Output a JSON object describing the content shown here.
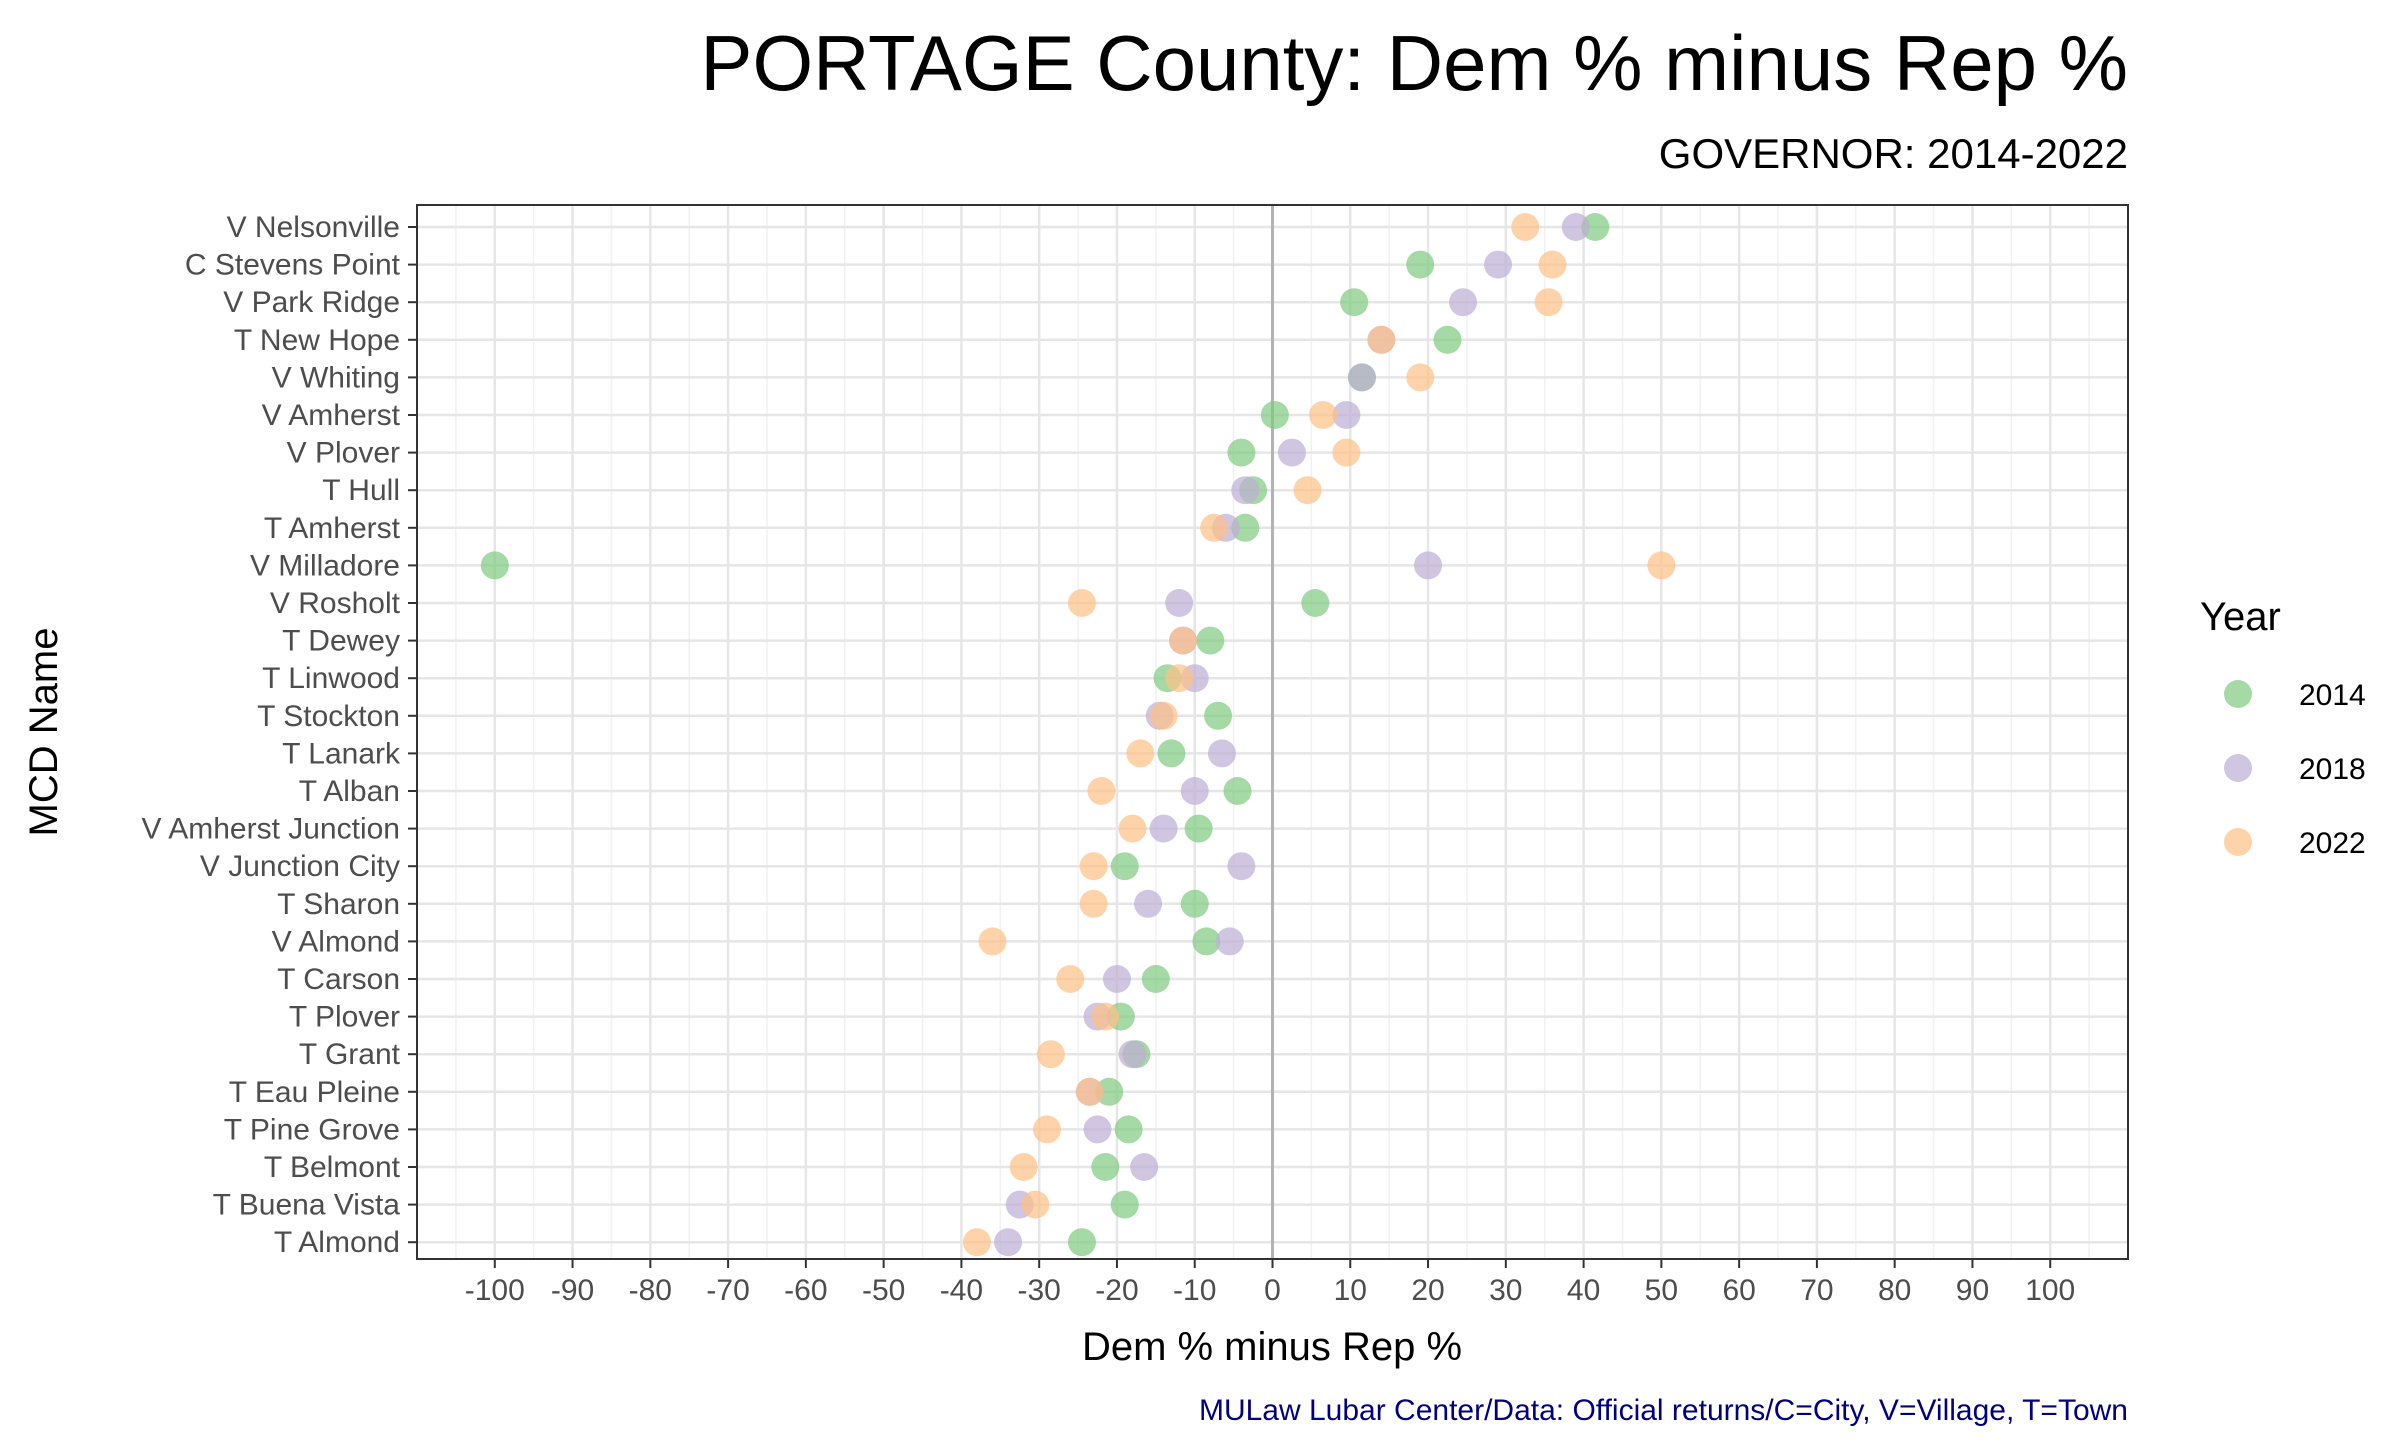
{
  "chart_data": {
    "type": "scatter",
    "title": "PORTAGE County: Dem % minus Rep %",
    "subtitle": "GOVERNOR: 2014-2022",
    "xlabel": "Dem % minus Rep %",
    "ylabel": "MCD Name",
    "xlim": [
      -110,
      110
    ],
    "x_ticks": [
      -100,
      -90,
      -80,
      -70,
      -60,
      -50,
      -40,
      -30,
      -20,
      -10,
      0,
      10,
      20,
      30,
      40,
      50,
      60,
      70,
      80,
      90,
      100
    ],
    "grid": true,
    "legend_title": "Year",
    "legend_position": "right",
    "caption": "MULaw Lubar Center/Data: Official returns/C=City, V=Village, T=Town",
    "categories": [
      "V Nelsonville",
      "C Stevens Point",
      "V Park Ridge",
      "T New Hope",
      "V Whiting",
      "V Amherst",
      "V Plover",
      "T Hull",
      "T Amherst",
      "V Milladore",
      "V Rosholt",
      "T Dewey",
      "T Linwood",
      "T Stockton",
      "T Lanark",
      "T Alban",
      "V Amherst Junction",
      "V Junction City",
      "T Sharon",
      "V Almond",
      "T Carson",
      "T Plover",
      "T Grant",
      "T Eau Pleine",
      "T Pine Grove",
      "T Belmont",
      "T Buena Vista",
      "T Almond"
    ],
    "series": [
      {
        "name": "2014",
        "color": "#7fc97f",
        "values": [
          41.5,
          19,
          10.5,
          22.5,
          11.5,
          0.3,
          -4,
          -2.5,
          -3.5,
          -100,
          5.5,
          -8,
          -13.5,
          -7,
          -13,
          -4.5,
          -9.5,
          -19,
          -10,
          -8.5,
          -15,
          -19.5,
          -17.5,
          -21,
          -18.5,
          -21.5,
          -19,
          -24.5
        ]
      },
      {
        "name": "2018",
        "color": "#beaed4",
        "values": [
          39,
          29,
          24.5,
          14,
          11.5,
          9.5,
          2.5,
          -3.5,
          -6,
          20,
          -12,
          -11.5,
          -10,
          -14.5,
          -6.5,
          -10,
          -14,
          -4,
          -16,
          -5.5,
          -20,
          -22.5,
          -18,
          -23.5,
          -22.5,
          -16.5,
          -32.5,
          -34
        ]
      },
      {
        "name": "2022",
        "color": "#fdc086",
        "values": [
          32.5,
          36,
          35.5,
          14,
          19,
          6.5,
          9.5,
          4.5,
          -7.5,
          50,
          -24.5,
          -11.5,
          -12,
          -14,
          -17,
          -22,
          -18,
          -23,
          -23,
          -36,
          -26,
          -21.5,
          -28.5,
          -23.5,
          -29,
          -32,
          -30.5,
          -38
        ]
      }
    ]
  }
}
